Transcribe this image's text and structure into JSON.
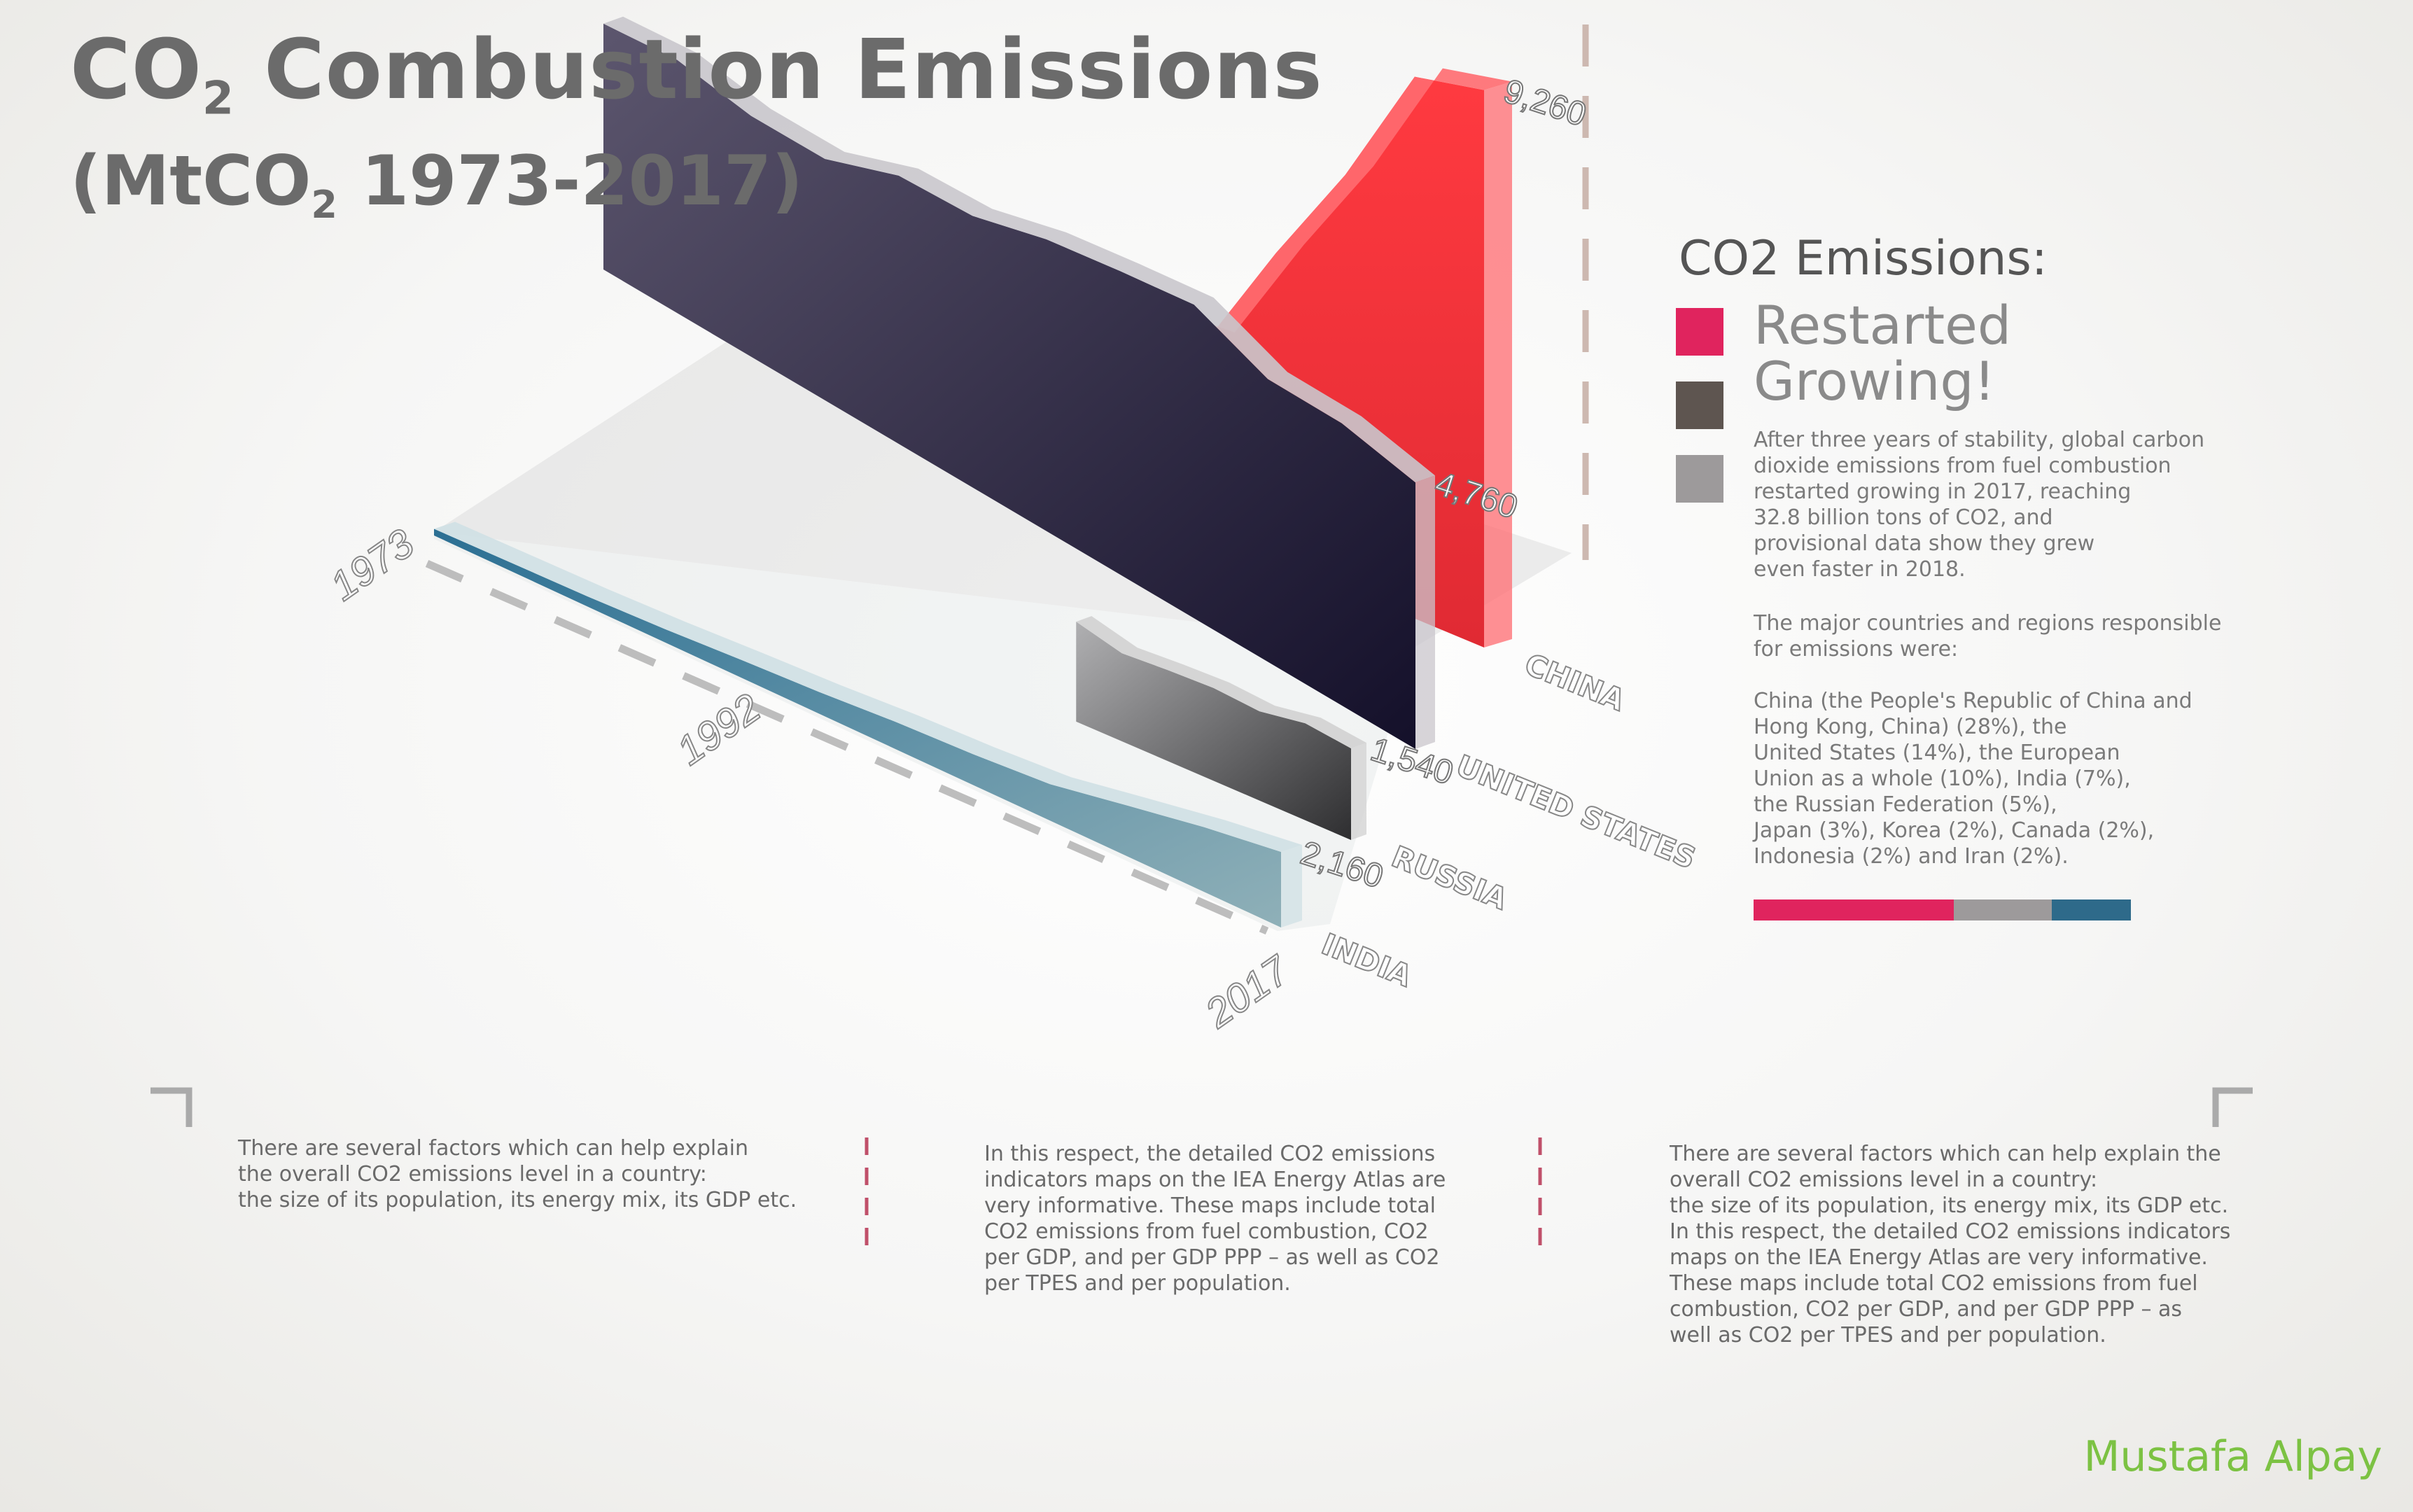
{
  "title": "CO2 Combustion Emissions",
  "subtitle": "(MtCO2 1973-2017)",
  "title_parts": {
    "pre": "CO",
    "sub": "2",
    "post": " Combustion Emissions"
  },
  "subtitle_parts": {
    "pre": "(MtCO",
    "sub": "2",
    "post": " 1973-2017)"
  },
  "panel": {
    "heading": "CO2 Emissions:",
    "restarted": "Restarted Growing!",
    "legend_colors": [
      "#e0245e",
      "#5e5550",
      "#9d9a9b"
    ],
    "para1": "After three years of stability, global carbon\ndioxide emissions from fuel combustion\nrestarted growing in 2017, reaching\n32.8 billion tons of CO2, and\nprovisional data show they grew\neven faster in 2018.",
    "para2": "The major countries and regions responsible\nfor emissions were:",
    "para3": "China (the People's Republic of China and\nHong Kong, China)  (28%), the\nUnited States (14%), the European\nUnion as a whole (10%), India (7%),\nthe Russian Federation (5%),\nJapan (3%), Korea (2%), Canada (2%),\nIndonesia (2%) and Iran (2%).",
    "bar": [
      {
        "color": "#e0245e",
        "share": 0.53
      },
      {
        "color": "#9d9a9b",
        "share": 0.26
      },
      {
        "color": "#2e6a8a",
        "share": 0.21
      }
    ]
  },
  "bottom": {
    "col1": "There are several factors which can help explain\nthe overall CO2 emissions level in a country:\nthe size of its population, its energy mix, its GDP etc.",
    "col2": "In this respect, the detailed CO2 emissions\nindicators maps on the IEA Energy Atlas are\nvery informative. These maps include total\nCO2 emissions from fuel combustion, CO2\nper GDP, and per GDP PPP – as well as CO2\nper TPES and per population.",
    "col3": "There are several factors which can help explain the\noverall CO2 emissions level in a country:\nthe size of its population, its energy mix, its GDP etc.\nIn this respect, the detailed CO2 emissions indicators\nmaps on the IEA Energy Atlas are very informative.\nThese maps include total CO2 emissions from fuel\ncombustion, CO2 per GDP, and per GDP PPP – as\nwell as CO2 per TPES and per population."
  },
  "author": "Mustafa Alpay",
  "chart_data": {
    "type": "area",
    "x": [
      1973,
      1977,
      1981,
      1985,
      1989,
      1993,
      1997,
      2001,
      2005,
      2009,
      2013,
      2017
    ],
    "year_labels": [
      "1973",
      "1992",
      "2017"
    ],
    "series": [
      {
        "name": "CHINA",
        "color": "#ef2a36",
        "values": [
          890,
          1160,
          1240,
          1540,
          2150,
          2530,
          3090,
          3170,
          5110,
          6890,
          9000,
          9260
        ],
        "end_label": "9,260"
      },
      {
        "name": "UNITED STATES",
        "color": "#3e3a52",
        "values": [
          4390,
          4520,
          4300,
          4310,
          4790,
          4850,
          5210,
          5420,
          5600,
          5050,
          5040,
          4760
        ],
        "end_label": "4,760"
      },
      {
        "name": "RUSSIA",
        "color": "#8a8a8c",
        "values": [
          null,
          null,
          null,
          null,
          null,
          1680,
          1480,
          1530,
          1560,
          1500,
          1630,
          1540
        ],
        "end_label": "1,540"
      },
      {
        "name": "INDIA",
        "color": "#6f9aa8",
        "values": [
          190,
          240,
          290,
          380,
          510,
          620,
          780,
          880,
          1040,
          1450,
          1850,
          2160
        ],
        "end_label": "2,160"
      }
    ]
  }
}
